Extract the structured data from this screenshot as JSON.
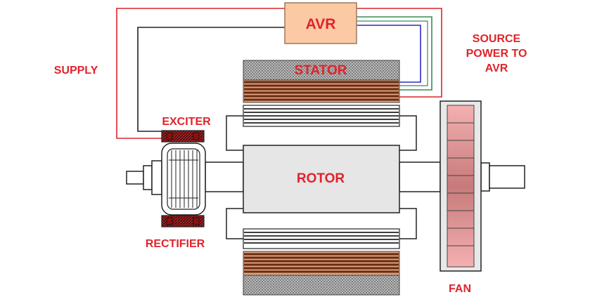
{
  "labels": {
    "avr": "AVR",
    "supply": "SUPPLY",
    "source_line1": "SOURCE",
    "source_line2": "POWER TO",
    "source_line3": "AVR",
    "stator": "STATOR",
    "exciter": "EXCITER",
    "rotor": "ROTOR",
    "rectifier": "RECTIFIER",
    "fan": "FAN"
  },
  "colors": {
    "label": "#e0232b",
    "avr_fill": "#fbc9a3",
    "stator_winding": "#7a2e14",
    "stator_winding_light": "#d9a37e",
    "rotor_fill": "#e6e6e6",
    "fan_fill": "#f2a6a6",
    "fan_center": "#d98080",
    "supply_wire_red": "#d8262a",
    "supply_wire_dark": "#222222",
    "source_wire_blue": "#2b2bc4",
    "source_wire_green": "#3a8a55",
    "source_wire_red": "#d8262a",
    "exciter_coil": "#c21d1d"
  }
}
